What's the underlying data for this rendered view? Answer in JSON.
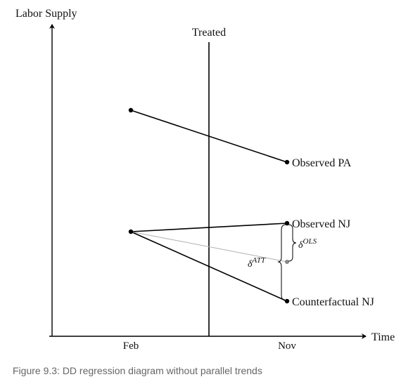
{
  "axes": {
    "y_label": "Labor Supply",
    "x_label": "Time",
    "ticks": [
      "Feb",
      "Nov"
    ]
  },
  "treatment_line_label": "Treated",
  "points": {
    "observed_pa": "Observed PA",
    "observed_nj": "Observed NJ",
    "counterfactual_nj": "Counterfactual NJ"
  },
  "annotations": {
    "delta_ols_base": "δ",
    "delta_ols_sup": "OLS",
    "delta_att_base": "δ",
    "delta_att_sup": "ATT"
  },
  "caption": "Figure 9.3: DD regression diagram without parallel trends",
  "colors": {
    "line": "#000000",
    "thin_line": "#b0b0b0",
    "gray_dot": "#888888",
    "caption": "#666666"
  }
}
